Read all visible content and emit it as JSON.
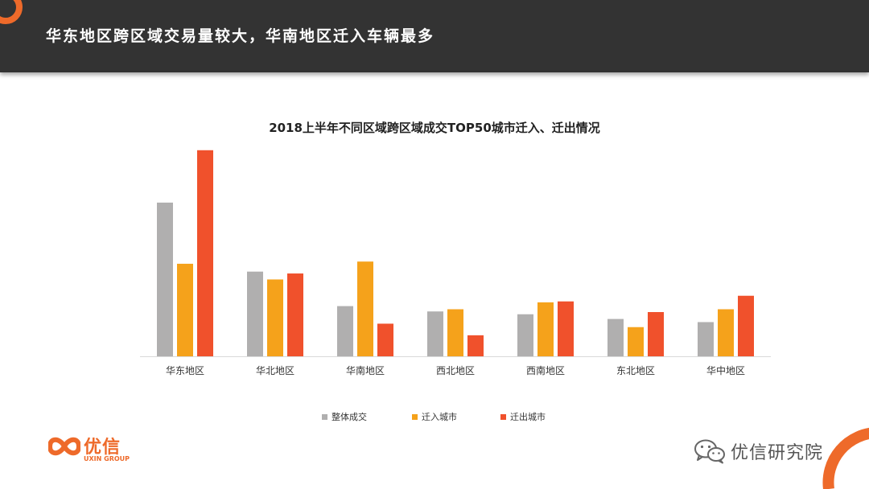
{
  "header": {
    "title": "华东地区跨区域交易量较大，华南地区迁入车辆最多"
  },
  "colors": {
    "header_bg": "#333333",
    "accent": "#ee6a2a"
  },
  "chart_data": {
    "type": "bar",
    "title": "2018上半年不同区域跨区域成交TOP50城市迁入、迁出情况",
    "categories": [
      "华东地区",
      "华北地区",
      "华南地区",
      "西北地区",
      "西南地区",
      "东北地区",
      "华中地区"
    ],
    "series": [
      {
        "name": "整体成交",
        "color": "#b0afaf",
        "values": [
          49,
          27,
          16,
          14.3,
          13.4,
          11.9,
          10.9
        ]
      },
      {
        "name": "迁入城市",
        "color": "#f5a21b",
        "values": [
          29.5,
          24.5,
          30.2,
          15,
          17.2,
          9.3,
          15
        ]
      },
      {
        "name": "迁出城市",
        "color": "#f0512c",
        "values": [
          65.7,
          26.4,
          10.4,
          6.7,
          17.5,
          14.1,
          19.3
        ]
      }
    ],
    "ylim": [
      0,
      70
    ],
    "grid": false,
    "legend": "bottom",
    "xlabel": "",
    "ylabel": ""
  },
  "logo": {
    "cn": "优信",
    "en": "UXIN GROUP"
  },
  "watermark": {
    "text": "优信研究院",
    "icon": "wechat-icon"
  }
}
